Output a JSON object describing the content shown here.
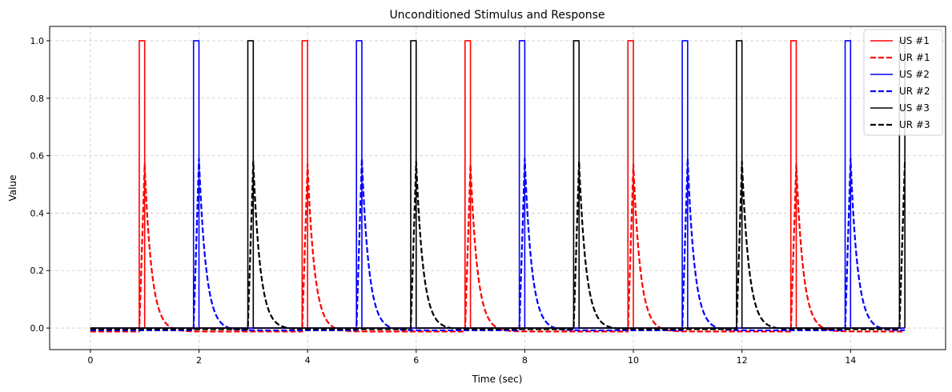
{
  "chart_data": {
    "type": "line",
    "title": "Unconditioned Stimulus and Response",
    "xlabel": "Time (sec)",
    "ylabel": "Value",
    "xlim": [
      -0.75,
      15.75
    ],
    "ylim": [
      -0.075,
      1.05
    ],
    "xticks": [
      0,
      2,
      4,
      6,
      8,
      10,
      12,
      14
    ],
    "yticks": [
      0.0,
      0.2,
      0.4,
      0.6,
      0.8,
      1.0
    ],
    "xtick_labels": [
      "0",
      "2",
      "4",
      "6",
      "8",
      "10",
      "12",
      "14"
    ],
    "ytick_labels": [
      "0.0",
      "0.2",
      "0.4",
      "0.6",
      "0.8",
      "1.0"
    ],
    "grid": true,
    "legend_position": "top-right",
    "pulse_width_sec": 0.1,
    "response_peak_delay_sec": 0.1,
    "response_decay_sec": 0.13,
    "series": [
      {
        "name": "US #1",
        "kind": "stimulus",
        "color": "#ff0000",
        "dash": "solid",
        "pulse_starts": [
          0.9,
          3.9,
          6.9,
          9.9,
          12.9
        ],
        "pulse_height": 1.0
      },
      {
        "name": "UR #1",
        "kind": "response",
        "color": "#ff0000",
        "dash": "dashed",
        "peak_times": [
          1.0,
          4.0,
          7.0,
          10.0,
          13.0
        ],
        "peak_value": 0.57,
        "baseline": -0.012
      },
      {
        "name": "US #2",
        "kind": "stimulus",
        "color": "#0000ff",
        "dash": "solid",
        "pulse_starts": [
          1.9,
          4.9,
          7.9,
          10.9,
          13.9
        ],
        "pulse_height": 1.0
      },
      {
        "name": "UR #2",
        "kind": "response",
        "color": "#0000ff",
        "dash": "dashed",
        "peak_times": [
          2.0,
          5.0,
          8.0,
          11.0,
          14.0
        ],
        "peak_value": 0.59,
        "baseline": -0.008
      },
      {
        "name": "US #3",
        "kind": "stimulus",
        "color": "#000000",
        "dash": "solid",
        "pulse_starts": [
          2.9,
          5.9,
          8.9,
          11.9,
          14.9
        ],
        "pulse_height": 1.0
      },
      {
        "name": "UR #3",
        "kind": "response",
        "color": "#000000",
        "dash": "dashed",
        "peak_times": [
          3.0,
          6.0,
          9.0,
          12.0,
          15.0
        ],
        "peak_value": 0.58,
        "baseline": -0.004
      }
    ]
  }
}
